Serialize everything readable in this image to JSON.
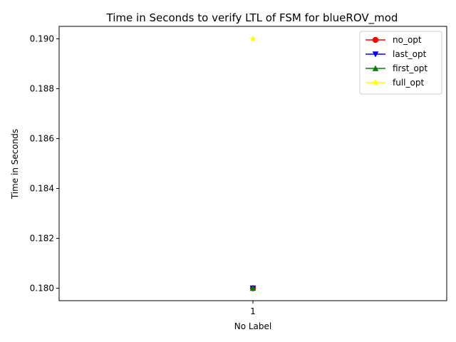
{
  "chart_data": {
    "type": "line",
    "title": "Time in Seconds to verify LTL of FSM for blueROV_mod",
    "xlabel": "No Label",
    "ylabel": "Time in Seconds",
    "categories": [
      "1"
    ],
    "ylim": [
      0.1795,
      0.1905
    ],
    "xlim": [
      0.5,
      1.5
    ],
    "yticks": [
      0.18,
      0.182,
      0.184,
      0.186,
      0.188,
      0.19
    ],
    "ytick_labels": [
      "0.180",
      "0.182",
      "0.184",
      "0.186",
      "0.188",
      "0.190"
    ],
    "grid": false,
    "legend_position": "top-right",
    "series": [
      {
        "name": "no_opt",
        "values": [
          0.18
        ],
        "color": "#ff0000",
        "marker": "circle"
      },
      {
        "name": "last_opt",
        "values": [
          0.18
        ],
        "color": "#0000ff",
        "marker": "triangle-down"
      },
      {
        "name": "first_opt",
        "values": [
          0.18
        ],
        "color": "#008000",
        "marker": "triangle-up"
      },
      {
        "name": "full_opt",
        "values": [
          0.19
        ],
        "color": "#ffff00",
        "marker": "star"
      }
    ]
  }
}
